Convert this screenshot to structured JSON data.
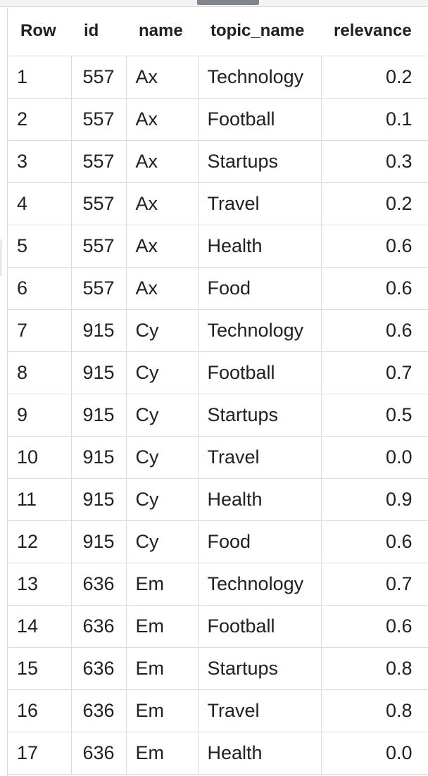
{
  "table": {
    "columns": [
      "Row",
      "id",
      "name",
      "topic_name",
      "relevance"
    ],
    "rows": [
      {
        "row": "1",
        "id": "557",
        "name": "Ax",
        "topic_name": "Technology",
        "relevance": "0.2"
      },
      {
        "row": "2",
        "id": "557",
        "name": "Ax",
        "topic_name": "Football",
        "relevance": "0.1"
      },
      {
        "row": "3",
        "id": "557",
        "name": "Ax",
        "topic_name": "Startups",
        "relevance": "0.3"
      },
      {
        "row": "4",
        "id": "557",
        "name": "Ax",
        "topic_name": "Travel",
        "relevance": "0.2"
      },
      {
        "row": "5",
        "id": "557",
        "name": "Ax",
        "topic_name": "Health",
        "relevance": "0.6"
      },
      {
        "row": "6",
        "id": "557",
        "name": "Ax",
        "topic_name": "Food",
        "relevance": "0.6"
      },
      {
        "row": "7",
        "id": "915",
        "name": "Cy",
        "topic_name": "Technology",
        "relevance": "0.6"
      },
      {
        "row": "8",
        "id": "915",
        "name": "Cy",
        "topic_name": "Football",
        "relevance": "0.7"
      },
      {
        "row": "9",
        "id": "915",
        "name": "Cy",
        "topic_name": "Startups",
        "relevance": "0.5"
      },
      {
        "row": "10",
        "id": "915",
        "name": "Cy",
        "topic_name": "Travel",
        "relevance": "0.0"
      },
      {
        "row": "11",
        "id": "915",
        "name": "Cy",
        "topic_name": "Health",
        "relevance": "0.9"
      },
      {
        "row": "12",
        "id": "915",
        "name": "Cy",
        "topic_name": "Food",
        "relevance": "0.6"
      },
      {
        "row": "13",
        "id": "636",
        "name": "Em",
        "topic_name": "Technology",
        "relevance": "0.7"
      },
      {
        "row": "14",
        "id": "636",
        "name": "Em",
        "topic_name": "Football",
        "relevance": "0.6"
      },
      {
        "row": "15",
        "id": "636",
        "name": "Em",
        "topic_name": "Startups",
        "relevance": "0.8"
      },
      {
        "row": "16",
        "id": "636",
        "name": "Em",
        "topic_name": "Travel",
        "relevance": "0.8"
      },
      {
        "row": "17",
        "id": "636",
        "name": "Em",
        "topic_name": "Health",
        "relevance": "0.0"
      }
    ]
  },
  "colors": {
    "border": "#dadce0",
    "text": "#202124",
    "handle": "#80868b"
  }
}
